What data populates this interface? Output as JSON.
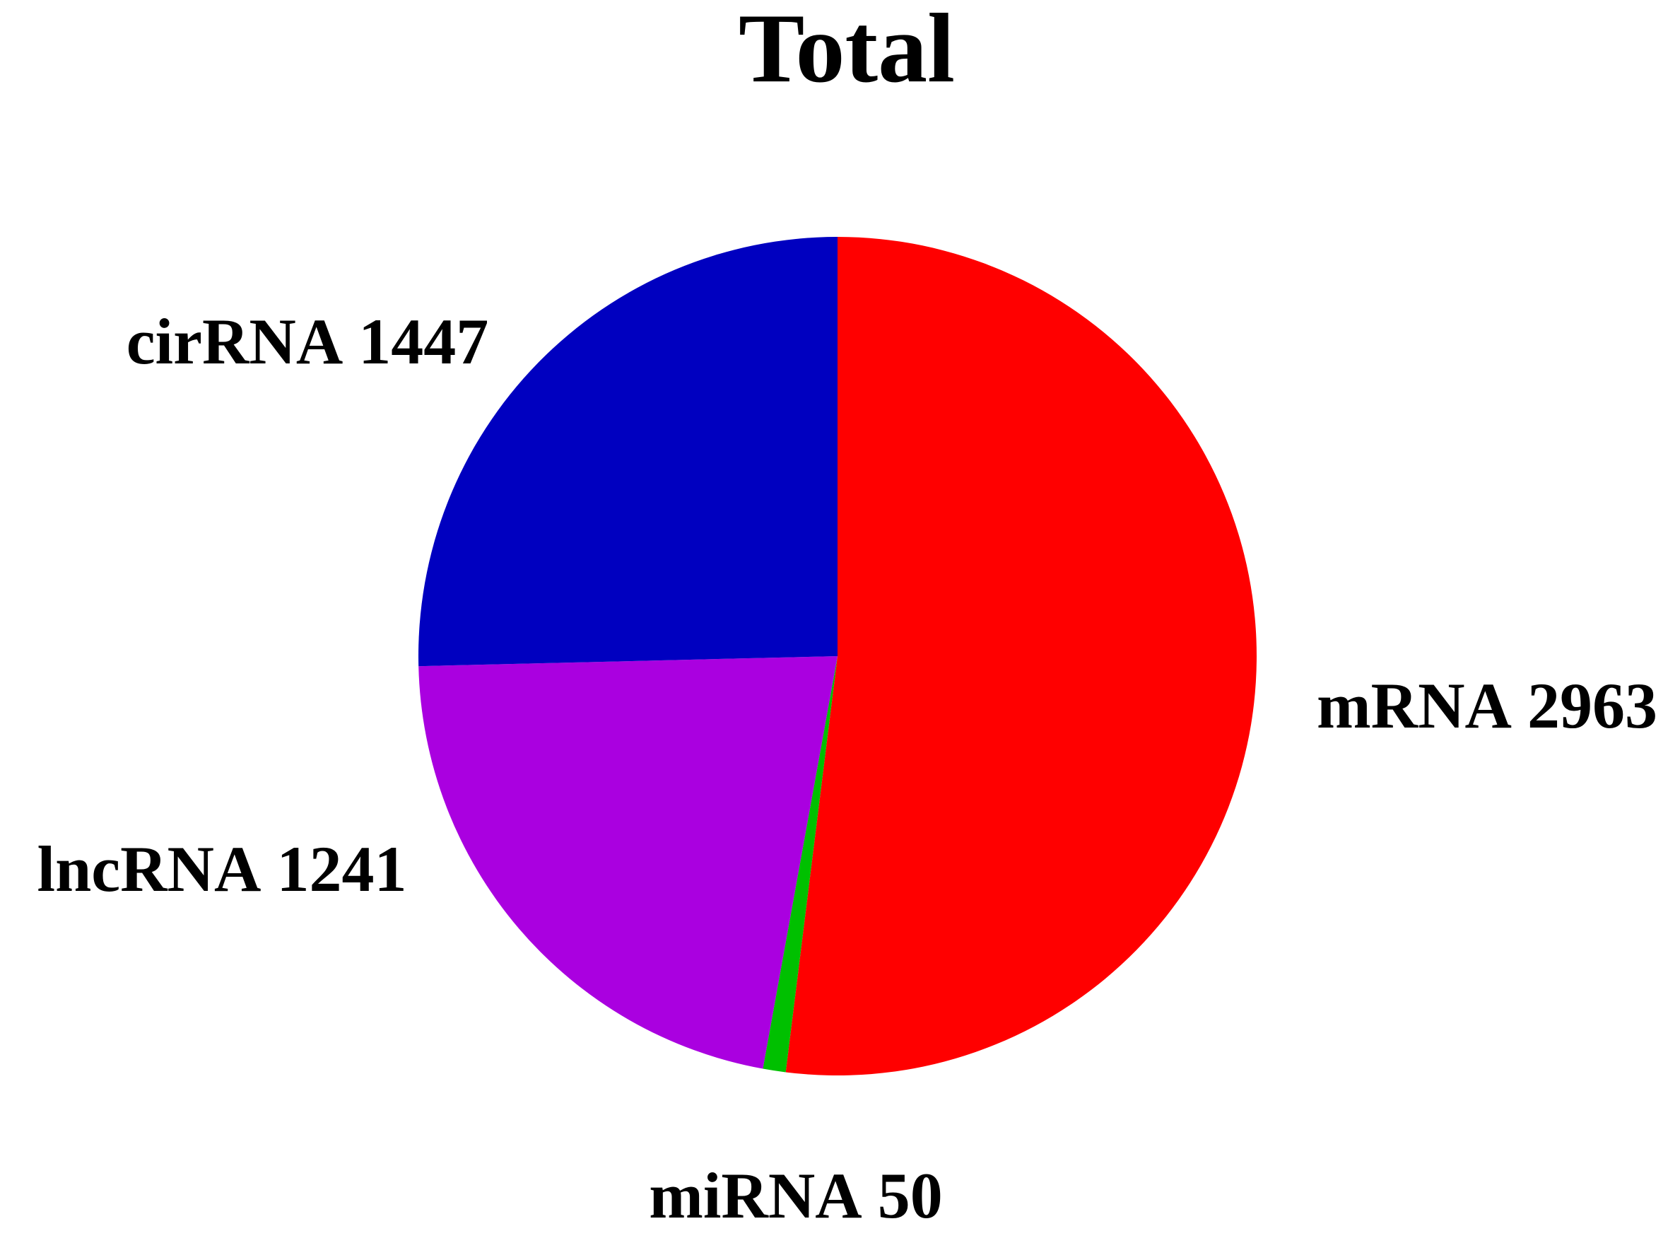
{
  "chart_data": {
    "type": "pie",
    "title": "Total",
    "categories": [
      "mRNA",
      "miRNA",
      "lncRNA",
      "cirRNA"
    ],
    "values": [
      2963,
      50,
      1241,
      1447
    ],
    "colors": [
      "#ff0000",
      "#00c000",
      "#aa00e0",
      "#0000c0"
    ]
  }
}
